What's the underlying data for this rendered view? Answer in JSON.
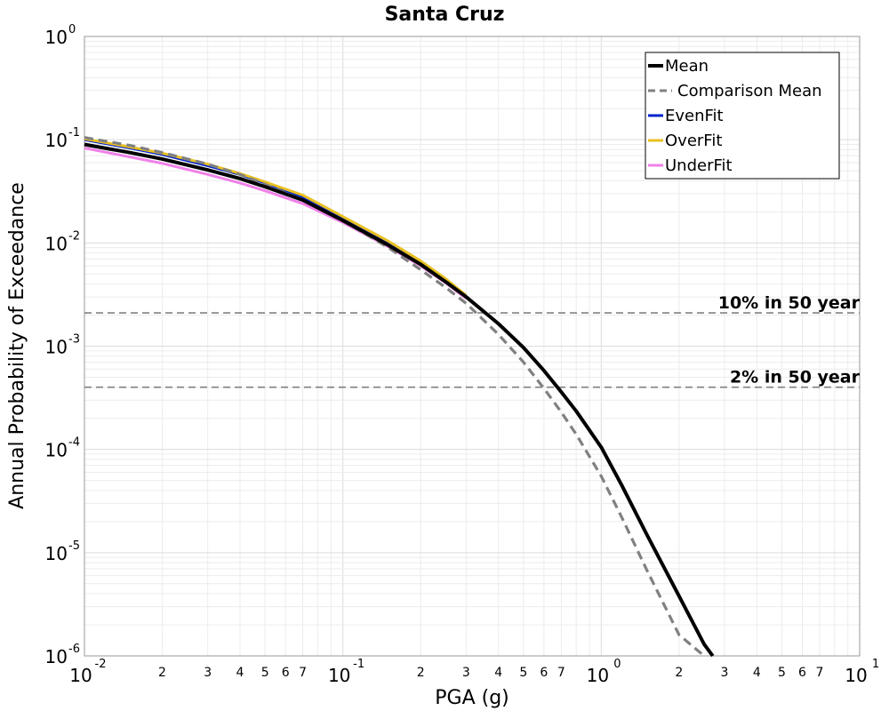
{
  "chart_data": {
    "type": "line",
    "title": "Santa Cruz",
    "xlabel": "PGA (g)",
    "ylabel": "Annual Probability of Exceedance",
    "x_scale": "log",
    "y_scale": "log",
    "xlim": [
      0.01,
      10
    ],
    "ylim": [
      1e-06,
      1
    ],
    "grid": true,
    "legend_position": "top-right",
    "x_major_ticks": [
      {
        "base": "10",
        "exp": "-2",
        "value": 0.01
      },
      {
        "base": "10",
        "exp": "-1",
        "value": 0.1
      },
      {
        "base": "10",
        "exp": "0",
        "value": 1
      },
      {
        "base": "10",
        "exp": "1",
        "value": 10
      }
    ],
    "x_minor_ticks": [
      {
        "label": "2",
        "value": 0.02
      },
      {
        "label": "3",
        "value": 0.03
      },
      {
        "label": "4",
        "value": 0.04
      },
      {
        "label": "5",
        "value": 0.05
      },
      {
        "label": "6",
        "value": 0.06
      },
      {
        "label": "7",
        "value": 0.07
      },
      {
        "label": "2",
        "value": 0.2
      },
      {
        "label": "3",
        "value": 0.3
      },
      {
        "label": "4",
        "value": 0.4
      },
      {
        "label": "5",
        "value": 0.5
      },
      {
        "label": "6",
        "value": 0.6
      },
      {
        "label": "7",
        "value": 0.7
      },
      {
        "label": "2",
        "value": 2
      },
      {
        "label": "3",
        "value": 3
      },
      {
        "label": "4",
        "value": 4
      },
      {
        "label": "5",
        "value": 5
      },
      {
        "label": "6",
        "value": 6
      },
      {
        "label": "7",
        "value": 7
      }
    ],
    "y_major_ticks": [
      {
        "base": "10",
        "exp": "0",
        "value": 1
      },
      {
        "base": "10",
        "exp": "-1",
        "value": 0.1
      },
      {
        "base": "10",
        "exp": "-2",
        "value": 0.01
      },
      {
        "base": "10",
        "exp": "-3",
        "value": 0.001
      },
      {
        "base": "10",
        "exp": "-4",
        "value": 0.0001
      },
      {
        "base": "10",
        "exp": "-5",
        "value": 1e-05
      },
      {
        "base": "10",
        "exp": "-6",
        "value": 1e-06
      }
    ],
    "reference_lines": [
      {
        "label": "10% in 50 year",
        "y": 0.0021,
        "color": "#808080"
      },
      {
        "label": "2% in 50 year",
        "y": 0.0004,
        "color": "#808080"
      }
    ],
    "series": [
      {
        "name": "Mean",
        "color": "#000000",
        "dash": "solid",
        "x": [
          0.01,
          0.015,
          0.02,
          0.03,
          0.04,
          0.05,
          0.07,
          0.1,
          0.15,
          0.2,
          0.25,
          0.3,
          0.4,
          0.5,
          0.6,
          0.7,
          0.8,
          1.0,
          1.2,
          1.5,
          2.0,
          2.5,
          2.7
        ],
        "y": [
          0.09,
          0.075,
          0.065,
          0.051,
          0.042,
          0.035,
          0.026,
          0.0165,
          0.0095,
          0.0062,
          0.0042,
          0.003,
          0.00165,
          0.00097,
          0.00058,
          0.00036,
          0.000235,
          0.000105,
          4.5e-05,
          1.5e-05,
          3.8e-06,
          1.3e-06,
          1e-06
        ]
      },
      {
        "name": "Comparison Mean",
        "color": "#808080",
        "dash": "dashed",
        "x": [
          0.01,
          0.015,
          0.02,
          0.03,
          0.04,
          0.05,
          0.07,
          0.1,
          0.15,
          0.2,
          0.25,
          0.3,
          0.4,
          0.5,
          0.6,
          0.7,
          0.8,
          1.0,
          1.2,
          1.5,
          2.0,
          2.5
        ],
        "y": [
          0.105,
          0.088,
          0.075,
          0.058,
          0.046,
          0.037,
          0.026,
          0.0165,
          0.009,
          0.0055,
          0.0037,
          0.0026,
          0.0013,
          0.0007,
          0.00039,
          0.00023,
          0.00014,
          5.5e-05,
          2.2e-05,
          6.8e-06,
          1.6e-06,
          1e-06
        ]
      },
      {
        "name": "EvenFit",
        "color": "#0022cc",
        "dash": "solid",
        "x": [
          0.01,
          0.015,
          0.02,
          0.03,
          0.04,
          0.05,
          0.07,
          0.1,
          0.15,
          0.2,
          0.25,
          0.3
        ],
        "y": [
          0.1,
          0.083,
          0.072,
          0.056,
          0.046,
          0.038,
          0.028,
          0.0175,
          0.0101,
          0.0065,
          0.0044,
          0.0031
        ]
      },
      {
        "name": "OverFit",
        "color": "#e8c020",
        "dash": "solid",
        "x": [
          0.01,
          0.015,
          0.02,
          0.03,
          0.04,
          0.05,
          0.07,
          0.1,
          0.15,
          0.2,
          0.25,
          0.3
        ],
        "y": [
          0.102,
          0.085,
          0.074,
          0.058,
          0.047,
          0.039,
          0.029,
          0.018,
          0.0104,
          0.0067,
          0.0045,
          0.0031
        ]
      },
      {
        "name": "UnderFit",
        "color": "#f080e8",
        "dash": "solid",
        "x": [
          0.01,
          0.015,
          0.02,
          0.03,
          0.04,
          0.05,
          0.07,
          0.1,
          0.15,
          0.2,
          0.25,
          0.3
        ],
        "y": [
          0.083,
          0.068,
          0.059,
          0.046,
          0.038,
          0.032,
          0.024,
          0.0158,
          0.0092,
          0.006,
          0.0041,
          0.0029
        ]
      }
    ]
  }
}
